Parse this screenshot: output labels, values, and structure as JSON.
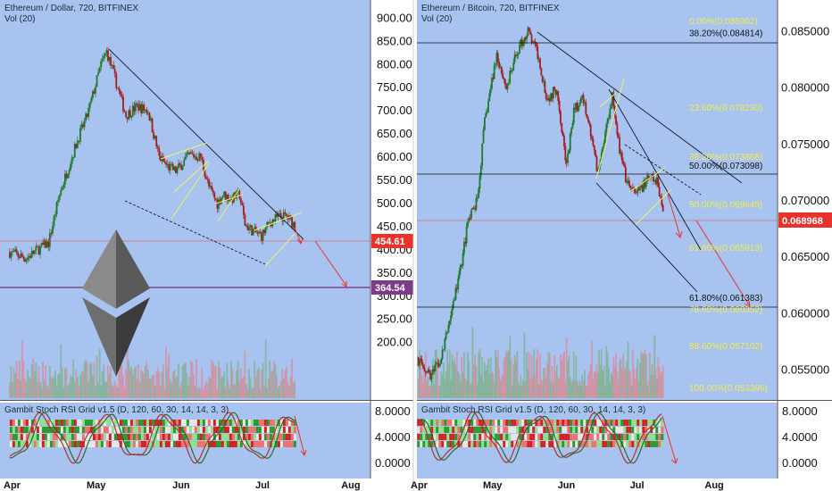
{
  "colors": {
    "bg": "#a8c3f0",
    "axis_bg": "#ffffff",
    "up": "#1d7a2a",
    "down": "#a31e1e",
    "trend": "#101828",
    "wedge": "#eef26a",
    "arrow": "#e8322b",
    "price_line": "#e04848",
    "support_line": "#7d2a7a",
    "fib_text": "#f0ee50",
    "fib_dark": "#111111",
    "badge_red": "#e8322b",
    "badge_purple": "#7d3a8a",
    "stoch_k": "#2a6a2a",
    "stoch_d": "#b03030"
  },
  "chart_data": [
    {
      "type": "candlestick",
      "title": "Ethereum / Dollar, 720, BITFINEX",
      "volume_label": "Vol (20)",
      "indicator_label": "Gambit Stoch RSI Grid v1.5 (D, 120, 60, 30, 14, 14, 3, 3)",
      "x_ticks": [
        "Apr",
        "May",
        "Jun",
        "Jul",
        "Aug"
      ],
      "y_ticks": [
        "900.00",
        "850.00",
        "800.00",
        "750.00",
        "700.00",
        "650.00",
        "600.00",
        "550.00",
        "500.00",
        "450.00",
        "400.00",
        "350.00",
        "300.00",
        "250.00",
        "200.00"
      ],
      "ylim": [
        130,
        920
      ],
      "indicator_ticks": [
        "8.0000",
        "4.0000",
        "0.0000"
      ],
      "last_price": "454.61",
      "support_price": "364.54",
      "price_path": [
        [
          "2018-03-31",
          395
        ],
        [
          "2018-04-06",
          382
        ],
        [
          "2018-04-10",
          400
        ],
        [
          "2018-04-14",
          415
        ],
        [
          "2018-04-18",
          520
        ],
        [
          "2018-04-21",
          575
        ],
        [
          "2018-04-25",
          645
        ],
        [
          "2018-04-28",
          690
        ],
        [
          "2018-05-03",
          800
        ],
        [
          "2018-05-05",
          828
        ],
        [
          "2018-05-07",
          790
        ],
        [
          "2018-05-12",
          690
        ],
        [
          "2018-05-16",
          710
        ],
        [
          "2018-05-20",
          700
        ],
        [
          "2018-05-24",
          600
        ],
        [
          "2018-05-27",
          580
        ],
        [
          "2018-05-30",
          570
        ],
        [
          "2018-06-04",
          605
        ],
        [
          "2018-06-08",
          600
        ],
        [
          "2018-06-11",
          535
        ],
        [
          "2018-06-14",
          500
        ],
        [
          "2018-06-16",
          520
        ],
        [
          "2018-06-19",
          510
        ],
        [
          "2018-06-22",
          520
        ],
        [
          "2018-06-24",
          455
        ],
        [
          "2018-06-27",
          440
        ],
        [
          "2018-06-30",
          430
        ],
        [
          "2018-07-03",
          460
        ],
        [
          "2018-07-06",
          470
        ],
        [
          "2018-07-09",
          472
        ],
        [
          "2018-07-12",
          454
        ]
      ]
    },
    {
      "type": "candlestick",
      "title": "Ethereum / Bitcoin, 720, BITFINEX",
      "volume_label": "Vol (20)",
      "indicator_label": "Gambit Stoch RSI Grid v1.5 (D, 120, 60, 30, 14, 14, 3, 3)",
      "x_ticks": [
        "Apr",
        "May",
        "Jun",
        "Jul",
        "Aug"
      ],
      "y_ticks": [
        "0.085000",
        "0.080000",
        "0.075000",
        "0.070000",
        "0.065000",
        "0.060000",
        "0.055000"
      ],
      "ylim": [
        0.053,
        0.087
      ],
      "indicator_ticks": [
        "8.0000",
        "4.0000",
        "0.0000"
      ],
      "last_price": "0.068968",
      "price_path": [
        [
          "2018-03-31",
          0.056
        ],
        [
          "2018-04-06",
          0.0545
        ],
        [
          "2018-04-10",
          0.056
        ],
        [
          "2018-04-14",
          0.06
        ],
        [
          "2018-04-18",
          0.064
        ],
        [
          "2018-04-21",
          0.068
        ],
        [
          "2018-04-25",
          0.07
        ],
        [
          "2018-04-28",
          0.077
        ],
        [
          "2018-05-03",
          0.083
        ],
        [
          "2018-05-07",
          0.08
        ],
        [
          "2018-05-12",
          0.0835
        ],
        [
          "2018-05-16",
          0.085
        ],
        [
          "2018-05-20",
          0.083
        ],
        [
          "2018-05-24",
          0.079
        ],
        [
          "2018-05-28",
          0.08
        ],
        [
          "2018-06-01",
          0.073
        ],
        [
          "2018-06-04",
          0.078
        ],
        [
          "2018-06-08",
          0.079
        ],
        [
          "2018-06-11",
          0.076
        ],
        [
          "2018-06-14",
          0.0725
        ],
        [
          "2018-06-17",
          0.076
        ],
        [
          "2018-06-20",
          0.0795
        ],
        [
          "2018-06-23",
          0.0745
        ],
        [
          "2018-06-26",
          0.0715
        ],
        [
          "2018-06-30",
          0.0705
        ],
        [
          "2018-07-03",
          0.0715
        ],
        [
          "2018-07-06",
          0.072
        ],
        [
          "2018-07-09",
          0.0715
        ],
        [
          "2018-07-11",
          0.069
        ]
      ],
      "fib_levels": [
        {
          "label": "0.00%(0.085902)",
          "value": 0.085902,
          "color": "yellow"
        },
        {
          "label": "38.20%(0.084814)",
          "value": 0.084814,
          "color": "dark"
        },
        {
          "label": "23.60%(0.078230)",
          "value": 0.07823,
          "color": "yellow"
        },
        {
          "label": "38.20%(0.073868)",
          "value": 0.073868,
          "color": "yellow"
        },
        {
          "label": "50.00%(0.073098)",
          "value": 0.073098,
          "color": "dark"
        },
        {
          "label": "50.00%(0.069649)",
          "value": 0.069649,
          "color": "yellow"
        },
        {
          "label": "61.80%(0.065813)",
          "value": 0.065813,
          "color": "yellow"
        },
        {
          "label": "61.80%(0.061383)",
          "value": 0.061383,
          "color": "dark"
        },
        {
          "label": "78.60%(0.060352)",
          "value": 0.060352,
          "color": "yellow"
        },
        {
          "label": "88.60%(0.057102)",
          "value": 0.057102,
          "color": "yellow"
        },
        {
          "label": "100.00%(0.053396)",
          "value": 0.053396,
          "color": "yellow"
        }
      ]
    }
  ]
}
